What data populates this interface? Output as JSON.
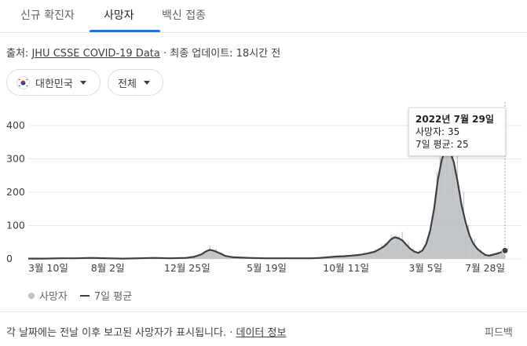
{
  "tabs": [
    {
      "label": "신규 확진자",
      "active": false
    },
    {
      "label": "사망자",
      "active": true
    },
    {
      "label": "백신 접종",
      "active": false
    }
  ],
  "source": {
    "prefix": "출처: ",
    "link": "JHU CSSE COVID-19 Data",
    "suffix": " · 최종 업데이트: 18시간 전"
  },
  "filters": {
    "country": "대한민국",
    "scope": "전체"
  },
  "tooltip": {
    "date": "2022년 7월 29일",
    "deaths": "사망자: 35",
    "avg": "7일 평균: 25"
  },
  "legend": {
    "bars": "사망자",
    "line": "7일 평균"
  },
  "footer": {
    "note": "각 날짜에는 전날 이후 보고된 사망자가 표시됩니다. · ",
    "link": "데이터 정보",
    "feedback": "피드백"
  },
  "colors": {
    "bars": "#bdc1c6",
    "line": "#3c4043",
    "accent": "#1a73e8"
  },
  "chart_data": {
    "type": "area",
    "x_ticks": [
      "3월 10일",
      "8월 2일",
      "12월 25일",
      "5월 19일",
      "10월 11일",
      "3월 5일",
      "7월 28일"
    ],
    "y_ticks": [
      "400",
      "300",
      "200",
      "100",
      "0"
    ],
    "ylim": [
      0,
      400
    ],
    "grid": true,
    "series": [
      {
        "name": "7일 평균",
        "points": [
          [
            0,
            1
          ],
          [
            20,
            1
          ],
          [
            40,
            2
          ],
          [
            60,
            2
          ],
          [
            80,
            3
          ],
          [
            100,
            2
          ],
          [
            120,
            1
          ],
          [
            140,
            2
          ],
          [
            160,
            3
          ],
          [
            180,
            2
          ],
          [
            200,
            3
          ],
          [
            210,
            6
          ],
          [
            220,
            14
          ],
          [
            225,
            22
          ],
          [
            230,
            27
          ],
          [
            235,
            25
          ],
          [
            240,
            20
          ],
          [
            245,
            15
          ],
          [
            250,
            9
          ],
          [
            260,
            5
          ],
          [
            280,
            3
          ],
          [
            300,
            2
          ],
          [
            320,
            2
          ],
          [
            340,
            2
          ],
          [
            360,
            2
          ],
          [
            370,
            3
          ],
          [
            380,
            5
          ],
          [
            390,
            7
          ],
          [
            400,
            8
          ],
          [
            410,
            10
          ],
          [
            420,
            12
          ],
          [
            430,
            16
          ],
          [
            440,
            22
          ],
          [
            450,
            35
          ],
          [
            455,
            45
          ],
          [
            460,
            58
          ],
          [
            465,
            65
          ],
          [
            470,
            62
          ],
          [
            475,
            55
          ],
          [
            480,
            42
          ],
          [
            485,
            30
          ],
          [
            490,
            22
          ],
          [
            495,
            18
          ],
          [
            500,
            25
          ],
          [
            505,
            45
          ],
          [
            510,
            85
          ],
          [
            515,
            150
          ],
          [
            520,
            240
          ],
          [
            525,
            300
          ],
          [
            530,
            330
          ],
          [
            535,
            325
          ],
          [
            540,
            290
          ],
          [
            545,
            230
          ],
          [
            550,
            160
          ],
          [
            555,
            110
          ],
          [
            560,
            70
          ],
          [
            565,
            45
          ],
          [
            570,
            30
          ],
          [
            575,
            20
          ],
          [
            580,
            12
          ],
          [
            585,
            10
          ],
          [
            590,
            13
          ],
          [
            595,
            16
          ],
          [
            600,
            20
          ],
          [
            605,
            25
          ]
        ]
      }
    ],
    "last_point": {
      "date": "2022년 7월 29일",
      "deaths": 35,
      "avg": 25
    }
  }
}
